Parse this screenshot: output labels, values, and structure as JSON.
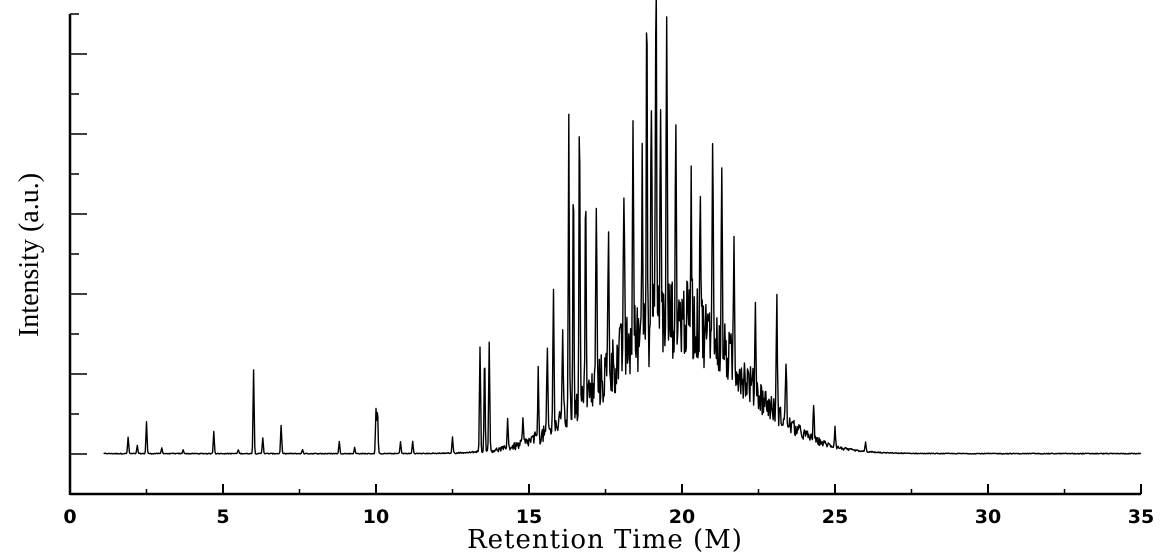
{
  "chart_data": {
    "type": "line",
    "title": "",
    "xlabel": "Retention Time (M)",
    "ylabel": "Intensity (a.u.)",
    "xlim": [
      0,
      35
    ],
    "ylim": [
      -0.25,
      2.4
    ],
    "x_ticks": [
      "0",
      "5",
      "10",
      "15",
      "20",
      "25",
      "30",
      "35"
    ],
    "y_tick_labels_shown": false,
    "grid": false,
    "baseline": {
      "hump_center": 19.8,
      "hump_width": 3.0,
      "hump_height": 0.55
    },
    "peaks": [
      {
        "x": 1.9,
        "y": 0.08
      },
      {
        "x": 2.5,
        "y": 0.16
      },
      {
        "x": 2.2,
        "y": 0.04
      },
      {
        "x": 3.0,
        "y": 0.03
      },
      {
        "x": 3.7,
        "y": 0.02
      },
      {
        "x": 4.7,
        "y": 0.11
      },
      {
        "x": 5.5,
        "y": 0.02
      },
      {
        "x": 6.0,
        "y": 0.42
      },
      {
        "x": 6.3,
        "y": 0.08
      },
      {
        "x": 6.9,
        "y": 0.14
      },
      {
        "x": 7.6,
        "y": 0.02
      },
      {
        "x": 8.8,
        "y": 0.06
      },
      {
        "x": 9.3,
        "y": 0.03
      },
      {
        "x": 10.0,
        "y": 0.22
      },
      {
        "x": 10.05,
        "y": 0.22
      },
      {
        "x": 10.8,
        "y": 0.06
      },
      {
        "x": 11.2,
        "y": 0.06
      },
      {
        "x": 12.5,
        "y": 0.08
      },
      {
        "x": 13.4,
        "y": 0.52
      },
      {
        "x": 13.55,
        "y": 0.48
      },
      {
        "x": 13.7,
        "y": 0.55
      },
      {
        "x": 14.3,
        "y": 0.15
      },
      {
        "x": 14.8,
        "y": 0.12
      },
      {
        "x": 15.3,
        "y": 0.32
      },
      {
        "x": 15.6,
        "y": 0.4
      },
      {
        "x": 15.8,
        "y": 0.75
      },
      {
        "x": 16.1,
        "y": 0.5
      },
      {
        "x": 16.3,
        "y": 1.45
      },
      {
        "x": 16.45,
        "y": 1.25
      },
      {
        "x": 16.65,
        "y": 1.52
      },
      {
        "x": 16.85,
        "y": 1.15
      },
      {
        "x": 17.2,
        "y": 0.95
      },
      {
        "x": 17.6,
        "y": 0.7
      },
      {
        "x": 18.1,
        "y": 0.85
      },
      {
        "x": 18.4,
        "y": 1.02
      },
      {
        "x": 18.7,
        "y": 0.95
      },
      {
        "x": 18.85,
        "y": 1.87
      },
      {
        "x": 19.0,
        "y": 1.2
      },
      {
        "x": 19.15,
        "y": 1.92
      },
      {
        "x": 19.3,
        "y": 1.15
      },
      {
        "x": 19.5,
        "y": 1.45
      },
      {
        "x": 19.8,
        "y": 0.85
      },
      {
        "x": 20.3,
        "y": 0.75
      },
      {
        "x": 20.6,
        "y": 0.72
      },
      {
        "x": 21.0,
        "y": 1.14
      },
      {
        "x": 21.3,
        "y": 0.82
      },
      {
        "x": 21.7,
        "y": 0.6
      },
      {
        "x": 22.4,
        "y": 0.42
      },
      {
        "x": 23.1,
        "y": 0.55
      },
      {
        "x": 23.4,
        "y": 0.3
      },
      {
        "x": 24.3,
        "y": 0.18
      },
      {
        "x": 25.0,
        "y": 0.1
      },
      {
        "x": 26.0,
        "y": 0.05
      }
    ]
  }
}
